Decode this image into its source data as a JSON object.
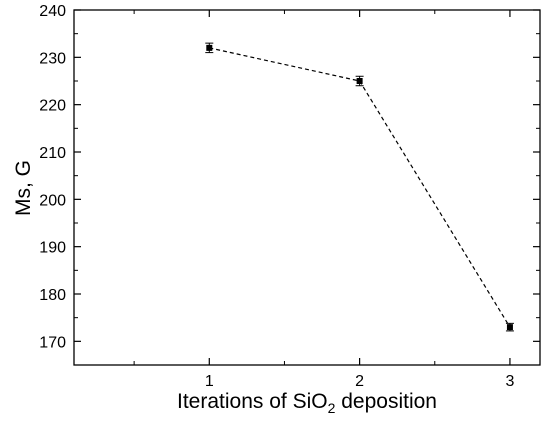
{
  "chart_data": {
    "type": "line",
    "x": [
      1,
      2,
      3
    ],
    "series": [
      {
        "values": [
          232,
          225,
          173
        ],
        "errors": [
          1,
          1,
          0.8
        ],
        "line_style": "dashed",
        "marker": "square",
        "color": "#000000"
      }
    ],
    "xlabel": "Iterations of SiO2 deposition",
    "xlabel_parts": {
      "before": "Iterations of SiO",
      "sub": "2",
      "after": " deposition"
    },
    "ylabel": "Ms, G",
    "xlim": [
      0.1,
      3.2
    ],
    "ylim": [
      165,
      240
    ],
    "xticks": [
      1,
      2,
      3
    ],
    "yticks": [
      170,
      180,
      190,
      200,
      210,
      220,
      230,
      240
    ],
    "grid": false
  }
}
